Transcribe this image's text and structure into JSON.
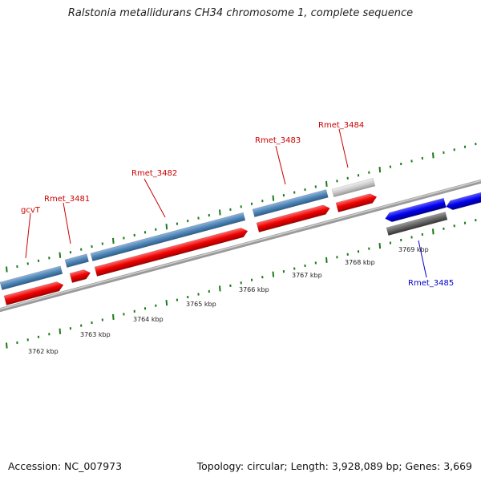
{
  "title": "Ralstonia metallidurans CH34 chromosome 1, complete sequence",
  "footer": {
    "accession": "Accession: NC_007973",
    "summary": "Topology: circular; Length: 3,928,089 bp; Genes: 3,669"
  },
  "scale_labels": [
    "3762 kbp",
    "3763 kbp",
    "3764 kbp",
    "3765 kbp",
    "3766 kbp",
    "3767 kbp",
    "3768 kbp",
    "3769 kbp"
  ],
  "gene_labels": [
    {
      "text": "gcvT",
      "color": "#cc0000"
    },
    {
      "text": "Rmet_3481",
      "color": "#cc0000"
    },
    {
      "text": "Rmet_3482",
      "color": "#cc0000"
    },
    {
      "text": "Rmet_3483",
      "color": "#cc0000"
    },
    {
      "text": "Rmet_3484",
      "color": "#cc0000"
    },
    {
      "text": "Rmet_3485",
      "color": "#0000cc"
    }
  ],
  "colors": {
    "backbone": "#8a8a8a",
    "cds_forward": "#ff0000",
    "gene_forward": "#4682b4",
    "cds_reverse": "#0000ff",
    "gene_reverse": "#606060",
    "gene_gray": "#c8c8c8",
    "ticks": "#1a7a1a"
  }
}
